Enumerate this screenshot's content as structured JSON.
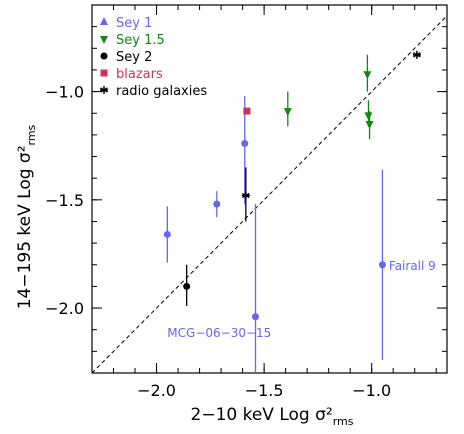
{
  "chart_data": {
    "type": "scatter",
    "xlabel": "2−10 keV Log σ²",
    "xlabel_sub": "rms",
    "ylabel": "14−195 keV Log σ²",
    "ylabel_sub": "rms",
    "xlim": [
      -2.3,
      -0.65
    ],
    "ylim": [
      -2.3,
      -0.6
    ],
    "x_ticks": [
      -2.0,
      -1.5,
      -1.0
    ],
    "x_tick_labels": [
      "−2.0",
      "−1.5",
      "−1.0"
    ],
    "y_ticks": [
      -2.0,
      -1.5,
      -1.0
    ],
    "y_tick_labels": [
      "−2.0",
      "−1.5",
      "−1.0"
    ],
    "grid": false,
    "legend_position": "top-left",
    "reference_line": {
      "style": "dashed",
      "from": [
        -2.3,
        -2.3
      ],
      "to": [
        -0.65,
        -0.65
      ]
    },
    "series": [
      {
        "name": "Sey 1",
        "marker": "triangle-up",
        "color": "#6666ee",
        "points": [
          {
            "x": -1.95,
            "y": -1.66,
            "ylo": -1.79,
            "yhi": -1.53
          },
          {
            "x": -1.72,
            "y": -1.52,
            "ylo": -1.58,
            "yhi": -1.46
          },
          {
            "x": -1.59,
            "y": -1.24,
            "ylo": -1.52,
            "yhi": -1.02
          },
          {
            "x": -1.54,
            "y": -2.04,
            "ylo": -2.3,
            "yhi": -1.52
          },
          {
            "x": -0.95,
            "y": -1.8,
            "ylo": -2.24,
            "yhi": -1.36
          }
        ],
        "point_marker": "circle"
      },
      {
        "name": "Sey 1.5",
        "marker": "triangle-down",
        "color": "#118811",
        "points": [
          {
            "x": -1.39,
            "y": -1.09,
            "ylo": -1.16,
            "yhi": -1.0
          },
          {
            "x": -1.02,
            "y": -0.92,
            "ylo": -1.0,
            "yhi": -0.83
          },
          {
            "x": -1.015,
            "y": -1.11,
            "ylo": -1.16,
            "yhi": -1.04
          },
          {
            "x": -1.01,
            "y": -1.15,
            "ylo": -1.22,
            "yhi": -1.09
          }
        ]
      },
      {
        "name": "Sey 2",
        "marker": "circle",
        "color": "#000000",
        "points": [
          {
            "x": -1.86,
            "y": -1.9,
            "ylo": -1.99,
            "yhi": -1.8
          }
        ]
      },
      {
        "name": "blazars",
        "marker": "square",
        "color": "#cc3366",
        "points": [
          {
            "x": -1.58,
            "y": -1.09,
            "ylo": -1.09,
            "yhi": -1.09
          }
        ]
      },
      {
        "name": "radio galaxies",
        "marker": "asterisk",
        "color": "#000000",
        "points": [
          {
            "x": -1.585,
            "y": -1.48,
            "ylo": -1.6,
            "yhi": -1.35
          },
          {
            "x": -0.79,
            "y": -0.83,
            "ylo": -0.83,
            "yhi": -0.83
          }
        ]
      }
    ],
    "annotations": [
      {
        "text": "Fairall 9",
        "x": -0.92,
        "y": -1.8,
        "color": "#6666ee"
      },
      {
        "text": "MCG−06−30−15",
        "x": -1.95,
        "y": -2.11,
        "color": "#6666ee"
      }
    ]
  }
}
